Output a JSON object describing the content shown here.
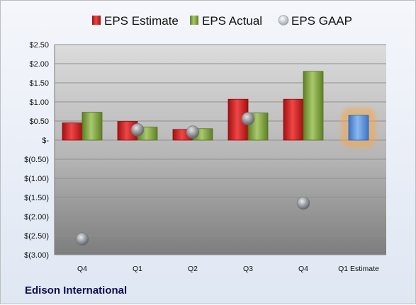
{
  "company": "Edison International",
  "chart_data": {
    "type": "bar",
    "categories": [
      "Q4",
      "Q1",
      "Q2",
      "Q3",
      "Q4",
      "Q1 Estimate"
    ],
    "y_ticks": [
      "$2.50",
      "$2.00",
      "$1.50",
      "$1.00",
      "$0.50",
      "$-",
      "$(0.50)",
      "$(1.00)",
      "$(1.50)",
      "$(2.00)",
      "$(2.50)",
      "$(3.00)"
    ],
    "ylim": [
      -3.0,
      2.5
    ],
    "grid": true,
    "legend_position": "top",
    "series": [
      {
        "name": "EPS Estimate",
        "color": "#d42020",
        "values": [
          0.45,
          0.49,
          0.28,
          1.07,
          1.07,
          null
        ]
      },
      {
        "name": "EPS Actual",
        "color": "#8db04a",
        "values": [
          0.73,
          0.34,
          0.3,
          0.71,
          1.8,
          null
        ]
      },
      {
        "name": "EPS GAAP",
        "color": "#a8adb3",
        "values": [
          -2.59,
          0.27,
          0.21,
          0.56,
          -1.65,
          null
        ]
      }
    ],
    "forecast": {
      "category": "Q1 Estimate",
      "value": 0.65,
      "color": "#5e97e0",
      "glow": "#f7a54a"
    }
  }
}
